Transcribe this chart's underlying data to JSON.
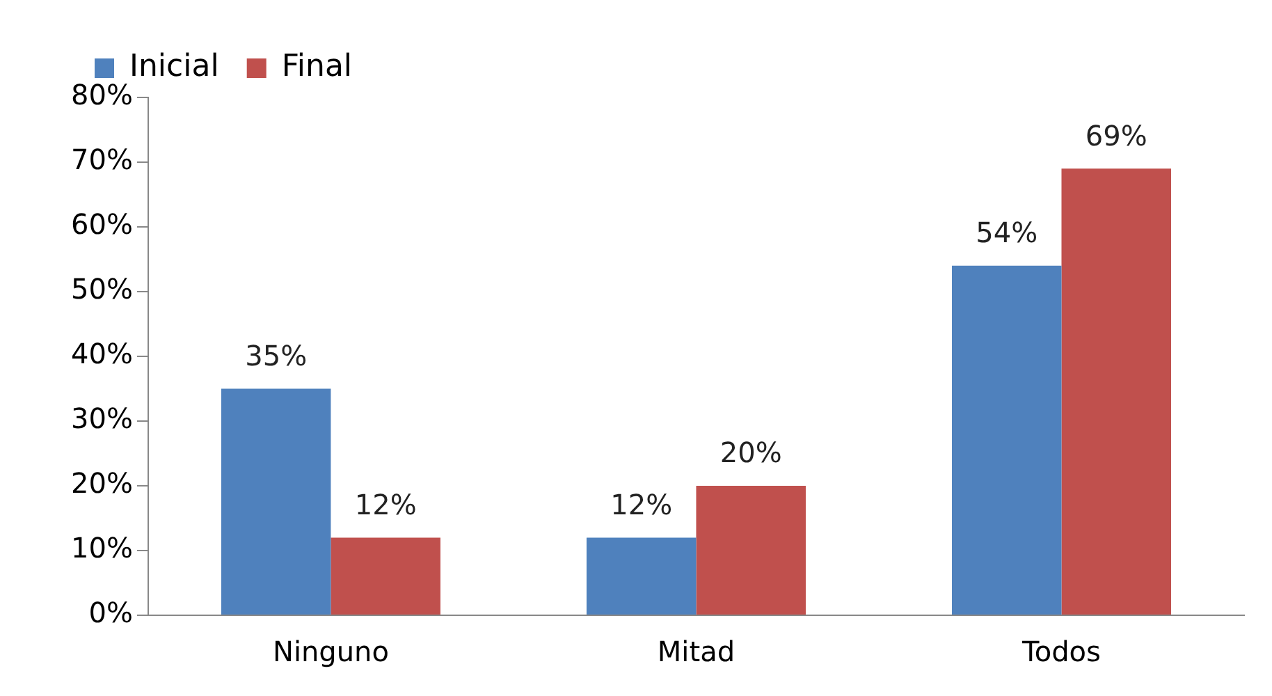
{
  "chart_data": {
    "type": "bar",
    "categories": [
      "Ninguno",
      "Mitad",
      "Todos"
    ],
    "series": [
      {
        "name": "Inicial",
        "color": "#4f81bd",
        "values": [
          35,
          12,
          54
        ],
        "value_labels": [
          "35%",
          "12%",
          "54%"
        ]
      },
      {
        "name": "Final",
        "color": "#c0504d",
        "values": [
          12,
          20,
          69
        ],
        "value_labels": [
          "12%",
          "20%",
          "69%"
        ]
      }
    ],
    "ylim": [
      0,
      80
    ],
    "yticks": [
      {
        "value": 0,
        "label": "0%"
      },
      {
        "value": 10,
        "label": "10%"
      },
      {
        "value": 20,
        "label": "20%"
      },
      {
        "value": 30,
        "label": "30%"
      },
      {
        "value": 40,
        "label": "40%"
      },
      {
        "value": 50,
        "label": "50%"
      },
      {
        "value": 60,
        "label": "60%"
      },
      {
        "value": 70,
        "label": "70%"
      },
      {
        "value": 80,
        "label": "80%"
      }
    ],
    "grid": false,
    "legend": "top left"
  }
}
